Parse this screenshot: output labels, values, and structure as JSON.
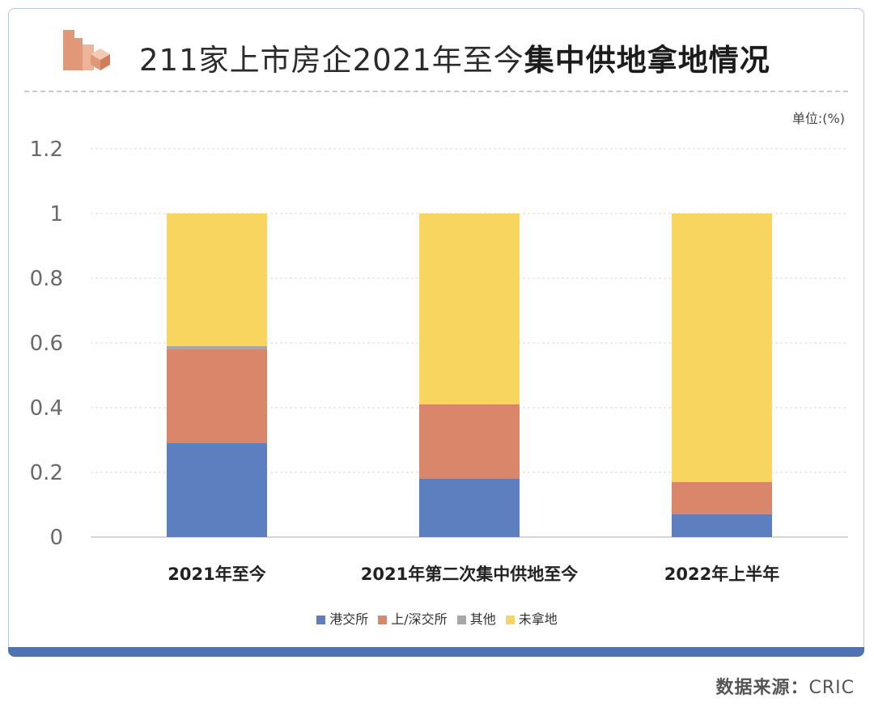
{
  "title": {
    "prefix": "211家上市房企2021年至今",
    "bold": "集中供地拿地情况"
  },
  "unit_label": "单位:(%)",
  "source": {
    "label": "数据来源：",
    "brand": "CRIC"
  },
  "chart_data": {
    "type": "bar",
    "stacked": true,
    "categories": [
      "2021年至今",
      "2021年第二次集中供地至今",
      "2022年上半年"
    ],
    "series": [
      {
        "name": "港交所",
        "color": "#5b7fbf",
        "values": [
          0.29,
          0.18,
          0.07
        ]
      },
      {
        "name": "上/深交所",
        "color": "#d9866a",
        "values": [
          0.29,
          0.23,
          0.1
        ]
      },
      {
        "name": "其他",
        "color": "#a7a7a7",
        "values": [
          0.01,
          0.0,
          0.0
        ]
      },
      {
        "name": "未拿地",
        "color": "#f7d55e",
        "values": [
          0.41,
          0.59,
          0.83
        ]
      }
    ],
    "ylim": [
      0,
      1.2
    ],
    "yticks": [
      "0",
      "0.2",
      "0.4",
      "0.6",
      "0.8",
      "1",
      "1.2"
    ],
    "grid": true,
    "legend_position": "bottom"
  }
}
